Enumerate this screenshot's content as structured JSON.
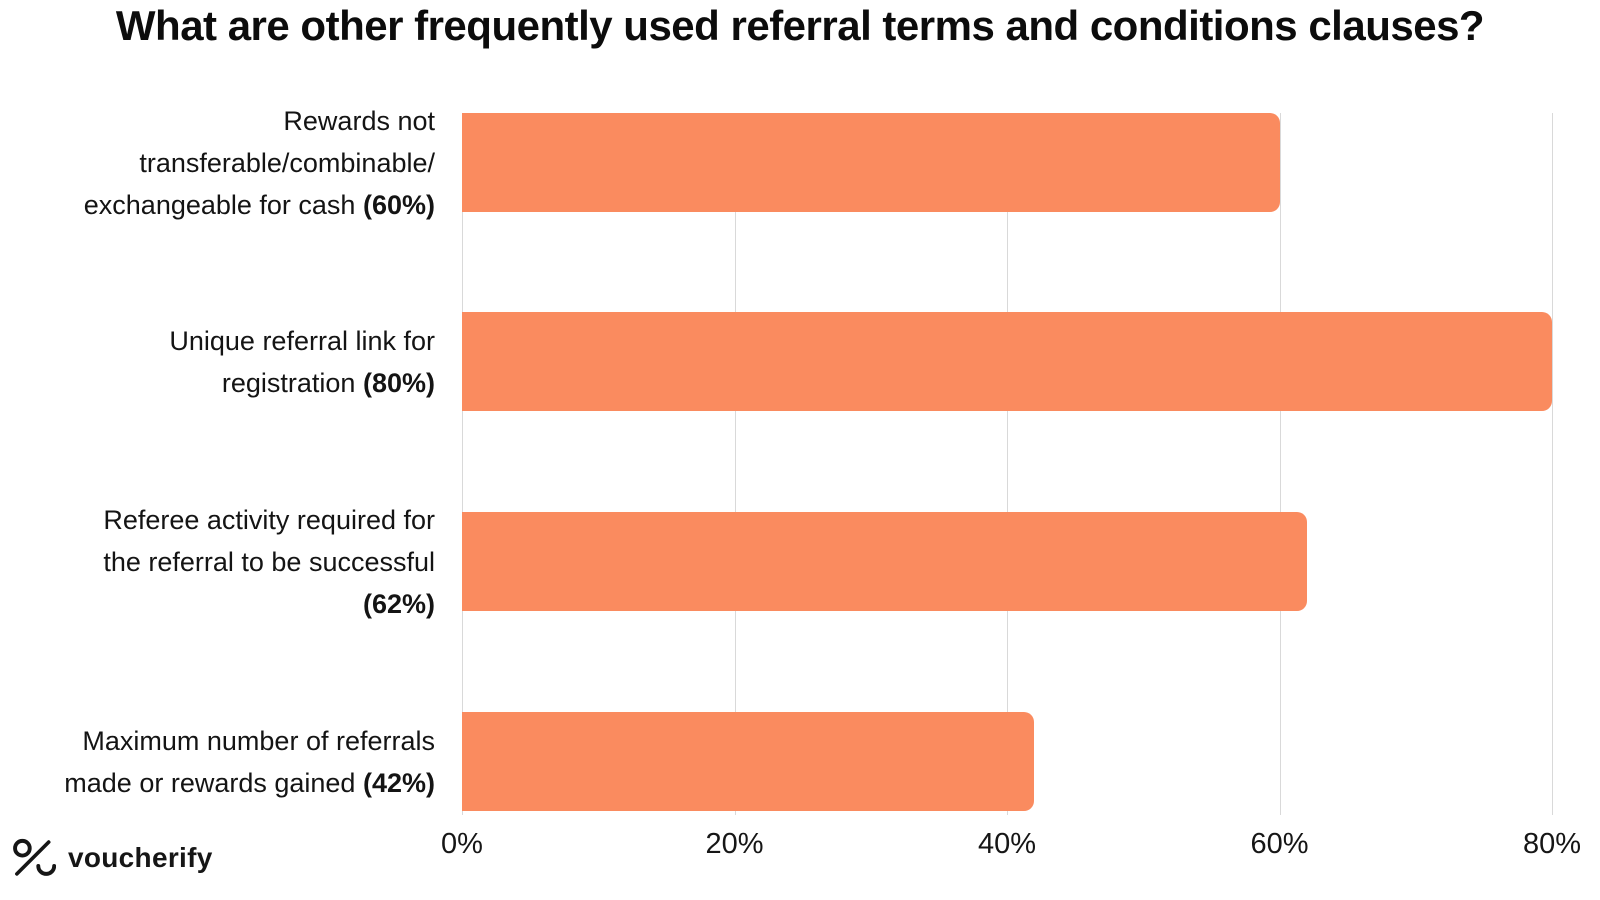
{
  "chart_data": {
    "type": "bar",
    "orientation": "horizontal",
    "title": "What are other frequently used referral terms and conditions clauses?",
    "categories": [
      "Rewards not transferable/combinable/exchangeable for cash",
      "Unique referral link for registration",
      "Referee activity required for the referral to be successful",
      "Maximum number of referrals made or rewards gained"
    ],
    "values": [
      60,
      80,
      62,
      42
    ],
    "value_labels": [
      "(60%)",
      "(80%)",
      "(62%)",
      "(42%)"
    ],
    "xlabel": "",
    "ylabel": "",
    "xlim": [
      0,
      80
    ],
    "x_ticks": [
      "0%",
      "20%",
      "40%",
      "60%",
      "80%"
    ],
    "grid": "vertical gridlines at ticks, no axis lines",
    "legend": "none",
    "bar_color": "#fa8b5f",
    "gridline_color": "#d9d9d9",
    "rows": [
      {
        "line1": "Rewards not",
        "line2": "transferable/combinable/",
        "line3": "exchangeable for cash",
        "pct": "(60%)",
        "value": 60
      },
      {
        "line1": "Unique referral link for",
        "line2": "registration",
        "pct": "(80%)",
        "value": 80
      },
      {
        "line1": "Referee activity required for",
        "line2": "the referral to be successful",
        "pct": "(62%)",
        "value": 62
      },
      {
        "line1": "Maximum number of referrals",
        "line2": "made or rewards gained",
        "pct": "(42%)",
        "value": 42
      }
    ]
  },
  "footer": {
    "brand": "voucherify",
    "logo_icon": "percent-smile-logo"
  }
}
